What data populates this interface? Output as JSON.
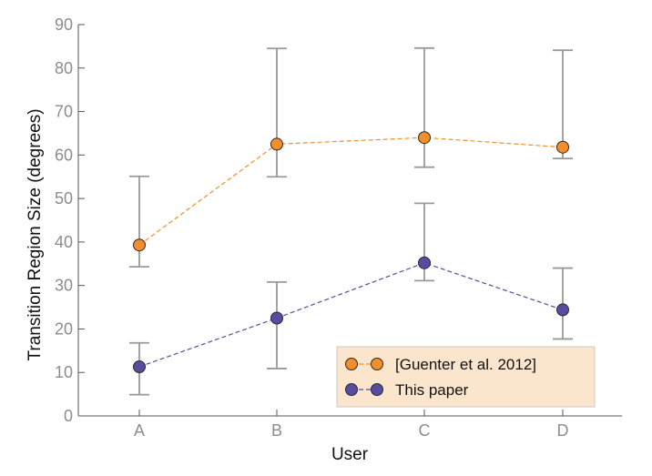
{
  "chart_data": {
    "type": "line",
    "title": "",
    "xlabel": "User",
    "ylabel": "Transition Region Size (degrees)",
    "categories": [
      "A",
      "B",
      "C",
      "D"
    ],
    "ylim": [
      0,
      90
    ],
    "yticks": [
      0,
      10,
      20,
      30,
      40,
      50,
      60,
      70,
      80,
      90
    ],
    "grid": false,
    "legend_position": "bottom-right",
    "error_bars": true,
    "series": [
      {
        "name": "[Guenter et al. 2012]",
        "color": "#f28e2b",
        "values": [
          39.3,
          62.5,
          64.0,
          61.8
        ],
        "error_low": [
          34.3,
          55.0,
          57.2,
          59.2
        ],
        "error_high": [
          55.1,
          84.5,
          84.6,
          84.1
        ]
      },
      {
        "name": "This paper",
        "color": "#574da0",
        "values": [
          11.3,
          22.5,
          35.2,
          24.4
        ],
        "error_low": [
          4.9,
          10.9,
          31.1,
          17.7
        ],
        "error_high": [
          16.8,
          30.8,
          48.9,
          34.0
        ]
      }
    ]
  }
}
